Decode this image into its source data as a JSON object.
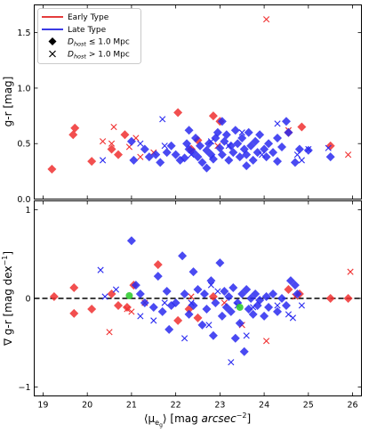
{
  "chart_data": [
    {
      "type": "scatter",
      "panel": "top",
      "ylabel": "g-r [mag]",
      "xlim": [
        18.8,
        26.2
      ],
      "ylim": [
        0.0,
        1.75
      ],
      "xticks": [
        "19",
        "20",
        "21",
        "22",
        "23",
        "24",
        "25",
        "26"
      ],
      "yticks": [
        "0.0",
        "0.5",
        "1.0",
        "1.5"
      ],
      "ytick_values": [
        0.0,
        0.5,
        1.0,
        1.5
      ],
      "legend": {
        "placement": "top-left",
        "entries": [
          {
            "label": "Early Type",
            "marker": "line",
            "color": "#e02020"
          },
          {
            "label": "Late Type",
            "marker": "line",
            "color": "#1f1fe0"
          },
          {
            "label_prefix": "D",
            "label_sub": "host",
            "label_suffix": " ≤ 1.0 Mpc",
            "marker": "diamond",
            "color": "#000000"
          },
          {
            "label_prefix": "D",
            "label_sub": "host",
            "label_suffix": " > 1.0 Mpc",
            "marker": "cross",
            "color": "#000000"
          }
        ]
      },
      "series": [
        {
          "name": "Early Type, Dhost ≤ 1.0 Mpc",
          "color": "#f03030",
          "marker": "diamond",
          "points": [
            [
              19.2,
              0.27
            ],
            [
              19.68,
              0.58
            ],
            [
              19.72,
              0.64
            ],
            [
              20.1,
              0.34
            ],
            [
              20.55,
              0.45
            ],
            [
              20.7,
              0.4
            ],
            [
              20.85,
              0.58
            ],
            [
              22.05,
              0.78
            ],
            [
              22.5,
              0.53
            ],
            [
              22.85,
              0.75
            ],
            [
              23.0,
              0.7
            ],
            [
              24.55,
              0.6
            ],
            [
              24.85,
              0.65
            ],
            [
              25.5,
              0.48
            ],
            [
              22.35,
              0.45
            ]
          ]
        },
        {
          "name": "Early Type, Dhost > 1.0 Mpc",
          "color": "#f03030",
          "marker": "cross",
          "points": [
            [
              20.35,
              0.52
            ],
            [
              20.6,
              0.65
            ],
            [
              20.55,
              0.5
            ],
            [
              21.1,
              0.55
            ],
            [
              21.5,
              0.42
            ],
            [
              21.2,
              0.38
            ],
            [
              22.95,
              0.48
            ],
            [
              24.05,
              1.62
            ],
            [
              24.55,
              0.62
            ],
            [
              25.9,
              0.4
            ],
            [
              20.95,
              0.47
            ]
          ]
        },
        {
          "name": "Late Type, Dhost ≤ 1.0 Mpc",
          "color": "#2a2af0",
          "marker": "diamond",
          "points": [
            [
              21.0,
              0.52
            ],
            [
              21.05,
              0.35
            ],
            [
              21.3,
              0.45
            ],
            [
              21.4,
              0.38
            ],
            [
              21.55,
              0.4
            ],
            [
              21.65,
              0.33
            ],
            [
              21.8,
              0.42
            ],
            [
              21.9,
              0.48
            ],
            [
              22.0,
              0.4
            ],
            [
              22.1,
              0.35
            ],
            [
              22.2,
              0.37
            ],
            [
              22.25,
              0.5
            ],
            [
              22.3,
              0.45
            ],
            [
              22.4,
              0.42
            ],
            [
              22.45,
              0.55
            ],
            [
              22.5,
              0.38
            ],
            [
              22.55,
              0.48
            ],
            [
              22.6,
              0.33
            ],
            [
              22.7,
              0.44
            ],
            [
              22.75,
              0.5
            ],
            [
              22.8,
              0.4
            ],
            [
              22.85,
              0.36
            ],
            [
              22.9,
              0.55
            ],
            [
              22.95,
              0.6
            ],
            [
              23.0,
              0.46
            ],
            [
              23.05,
              0.4
            ],
            [
              23.1,
              0.52
            ],
            [
              23.15,
              0.58
            ],
            [
              23.2,
              0.35
            ],
            [
              23.25,
              0.48
            ],
            [
              23.3,
              0.42
            ],
            [
              23.35,
              0.62
            ],
            [
              23.4,
              0.5
            ],
            [
              23.45,
              0.38
            ],
            [
              23.5,
              0.55
            ],
            [
              23.55,
              0.45
            ],
            [
              23.6,
              0.4
            ],
            [
              23.65,
              0.6
            ],
            [
              23.7,
              0.48
            ],
            [
              23.75,
              0.35
            ],
            [
              23.8,
              0.52
            ],
            [
              23.85,
              0.42
            ],
            [
              23.9,
              0.58
            ],
            [
              24.0,
              0.45
            ],
            [
              24.05,
              0.38
            ],
            [
              24.1,
              0.5
            ],
            [
              24.2,
              0.42
            ],
            [
              24.3,
              0.55
            ],
            [
              24.4,
              0.47
            ],
            [
              24.5,
              0.7
            ],
            [
              24.55,
              0.6
            ],
            [
              24.7,
              0.33
            ],
            [
              24.8,
              0.45
            ],
            [
              25.0,
              0.44
            ],
            [
              25.5,
              0.38
            ],
            [
              23.05,
              0.7
            ],
            [
              22.3,
              0.62
            ],
            [
              22.7,
              0.28
            ],
            [
              23.6,
              0.3
            ],
            [
              24.3,
              0.34
            ]
          ]
        },
        {
          "name": "Late Type, Dhost > 1.0 Mpc",
          "color": "#2a2af0",
          "marker": "cross",
          "points": [
            [
              20.35,
              0.35
            ],
            [
              21.7,
              0.72
            ],
            [
              21.75,
              0.48
            ],
            [
              22.35,
              0.4
            ],
            [
              22.8,
              0.52
            ],
            [
              23.2,
              0.48
            ],
            [
              23.5,
              0.6
            ],
            [
              24.3,
              0.68
            ],
            [
              24.75,
              0.4
            ],
            [
              24.85,
              0.35
            ],
            [
              25.0,
              0.45
            ],
            [
              25.45,
              0.46
            ],
            [
              23.95,
              0.4
            ],
            [
              21.2,
              0.5
            ]
          ]
        }
      ]
    },
    {
      "type": "scatter",
      "panel": "bottom",
      "ylabel_prefix": "∇ g-r [mag dex",
      "ylabel_sup": "−1",
      "ylabel_suffix": "]",
      "xlabel_prefix": "⟨μ",
      "xlabel_sub": "e",
      "xlabel_subsub": "g",
      "xlabel_mid": "⟩ [mag ",
      "xlabel_italic": "arcsec",
      "xlabel_sup": "−2",
      "xlabel_suffix": "]",
      "xlim": [
        18.8,
        26.2
      ],
      "ylim": [
        -1.1,
        1.1
      ],
      "xticks": [
        "19",
        "20",
        "21",
        "22",
        "23",
        "24",
        "25",
        "26"
      ],
      "xtick_values": [
        19,
        20,
        21,
        22,
        23,
        24,
        25,
        26
      ],
      "yticks": [
        "−1",
        "0",
        "1"
      ],
      "ytick_values": [
        -1,
        0,
        1
      ],
      "reference_line": {
        "y": 0,
        "style": "dashed",
        "color": "#000000"
      },
      "series": [
        {
          "name": "Early Type, Dhost ≤ 1.0 Mpc",
          "color": "#f03030",
          "marker": "diamond",
          "points": [
            [
              19.25,
              0.02
            ],
            [
              19.7,
              0.12
            ],
            [
              19.7,
              -0.17
            ],
            [
              20.1,
              -0.12
            ],
            [
              20.55,
              0.05
            ],
            [
              20.7,
              -0.08
            ],
            [
              20.9,
              -0.1
            ],
            [
              21.05,
              0.15
            ],
            [
              21.6,
              0.38
            ],
            [
              22.05,
              -0.25
            ],
            [
              22.3,
              -0.12
            ],
            [
              22.5,
              -0.22
            ],
            [
              22.85,
              0.02
            ],
            [
              24.55,
              0.1
            ],
            [
              24.8,
              0.05
            ],
            [
              25.5,
              0.0
            ],
            [
              25.9,
              0.0
            ]
          ]
        },
        {
          "name": "Early Type, Dhost > 1.0 Mpc",
          "color": "#f03030",
          "marker": "cross",
          "points": [
            [
              20.5,
              -0.38
            ],
            [
              20.9,
              -0.12
            ],
            [
              21.0,
              -0.15
            ],
            [
              21.3,
              -0.05
            ],
            [
              22.35,
              0.02
            ],
            [
              23.1,
              -0.05
            ],
            [
              23.5,
              -0.3
            ],
            [
              24.05,
              -0.48
            ],
            [
              24.7,
              0.02
            ],
            [
              25.95,
              0.3
            ]
          ]
        },
        {
          "name": "Late Type, Dhost ≤ 1.0 Mpc",
          "color": "#2a2af0",
          "marker": "diamond",
          "points": [
            [
              21.0,
              0.65
            ],
            [
              21.1,
              0.15
            ],
            [
              21.2,
              0.05
            ],
            [
              21.3,
              -0.05
            ],
            [
              21.5,
              -0.1
            ],
            [
              21.6,
              0.25
            ],
            [
              21.7,
              -0.15
            ],
            [
              21.8,
              0.08
            ],
            [
              21.9,
              -0.08
            ],
            [
              22.0,
              -0.05
            ],
            [
              22.15,
              0.48
            ],
            [
              22.2,
              0.05
            ],
            [
              22.3,
              -0.18
            ],
            [
              22.4,
              -0.08
            ],
            [
              22.5,
              0.1
            ],
            [
              22.6,
              -0.3
            ],
            [
              22.65,
              0.05
            ],
            [
              22.7,
              -0.12
            ],
            [
              22.8,
              0.2
            ],
            [
              22.9,
              -0.05
            ],
            [
              23.0,
              0.4
            ],
            [
              23.05,
              -0.2
            ],
            [
              23.1,
              0.08
            ],
            [
              23.15,
              -0.1
            ],
            [
              23.2,
              0.02
            ],
            [
              23.25,
              -0.15
            ],
            [
              23.3,
              0.12
            ],
            [
              23.4,
              -0.05
            ],
            [
              23.45,
              -0.28
            ],
            [
              23.5,
              0.05
            ],
            [
              23.55,
              -0.6
            ],
            [
              23.6,
              0.1
            ],
            [
              23.65,
              -0.12
            ],
            [
              23.7,
              0.0
            ],
            [
              23.75,
              -0.18
            ],
            [
              23.8,
              0.05
            ],
            [
              23.85,
              -0.08
            ],
            [
              23.9,
              -0.02
            ],
            [
              24.0,
              -0.2
            ],
            [
              24.05,
              0.02
            ],
            [
              24.1,
              -0.1
            ],
            [
              24.2,
              0.05
            ],
            [
              24.3,
              -0.15
            ],
            [
              24.4,
              0.0
            ],
            [
              24.5,
              -0.08
            ],
            [
              24.6,
              0.2
            ],
            [
              24.7,
              0.15
            ],
            [
              24.75,
              0.05
            ],
            [
              22.85,
              -0.42
            ],
            [
              23.35,
              -0.45
            ],
            [
              22.4,
              0.3
            ],
            [
              21.85,
              -0.35
            ]
          ]
        },
        {
          "name": "Late Type, Dhost > 1.0 Mpc",
          "color": "#2a2af0",
          "marker": "cross",
          "points": [
            [
              20.3,
              0.32
            ],
            [
              20.4,
              0.02
            ],
            [
              20.65,
              0.1
            ],
            [
              21.2,
              -0.2
            ],
            [
              21.5,
              -0.25
            ],
            [
              21.75,
              -0.05
            ],
            [
              22.2,
              -0.45
            ],
            [
              22.35,
              -0.05
            ],
            [
              22.75,
              -0.3
            ],
            [
              22.8,
              0.15
            ],
            [
              22.95,
              0.08
            ],
            [
              23.25,
              -0.72
            ],
            [
              23.4,
              -0.08
            ],
            [
              23.6,
              -0.42
            ],
            [
              23.75,
              -0.1
            ],
            [
              24.3,
              -0.08
            ],
            [
              24.55,
              -0.18
            ],
            [
              24.65,
              -0.22
            ],
            [
              24.85,
              -0.08
            ]
          ]
        },
        {
          "name": "highlight",
          "color": "#33cc33",
          "marker": "dot",
          "points": [
            [
              20.95,
              0.03
            ],
            [
              23.45,
              -0.1
            ]
          ]
        }
      ]
    }
  ]
}
